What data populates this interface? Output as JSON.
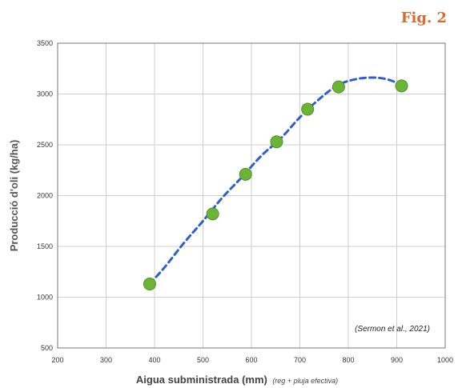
{
  "figure_label": "Fig. 2",
  "chart_data": {
    "type": "scatter",
    "xlabel": "Aigua subministrada (mm)",
    "xlabel_suffix": "(reg + pluja efectiva)",
    "ylabel": "Producció d'oli (kg/ha)",
    "annotation": "(Sermon et al., 2021)",
    "xlim": [
      200,
      1000
    ],
    "ylim": [
      500,
      3500
    ],
    "x_ticks": [
      200,
      300,
      400,
      500,
      600,
      700,
      800,
      900,
      1000
    ],
    "y_ticks": [
      500,
      1000,
      1500,
      2000,
      2500,
      3000,
      3500
    ],
    "grid": true,
    "colors": {
      "points": "#6bb536",
      "trend": "#2f5fcf"
    },
    "series": [
      {
        "x": [
          390,
          520,
          588,
          652,
          716,
          780,
          910
        ],
        "y": [
          1130,
          1820,
          2210,
          2530,
          2850,
          3070,
          3080
        ]
      }
    ],
    "trendline": {
      "style": "dashed",
      "x": [
        390,
        420,
        460,
        500,
        540,
        580,
        620,
        660,
        700,
        740,
        780,
        820,
        860,
        890,
        910
      ],
      "y": [
        1130,
        1290,
        1530,
        1750,
        1980,
        2180,
        2390,
        2560,
        2770,
        2950,
        3090,
        3150,
        3160,
        3130,
        3080
      ]
    }
  }
}
